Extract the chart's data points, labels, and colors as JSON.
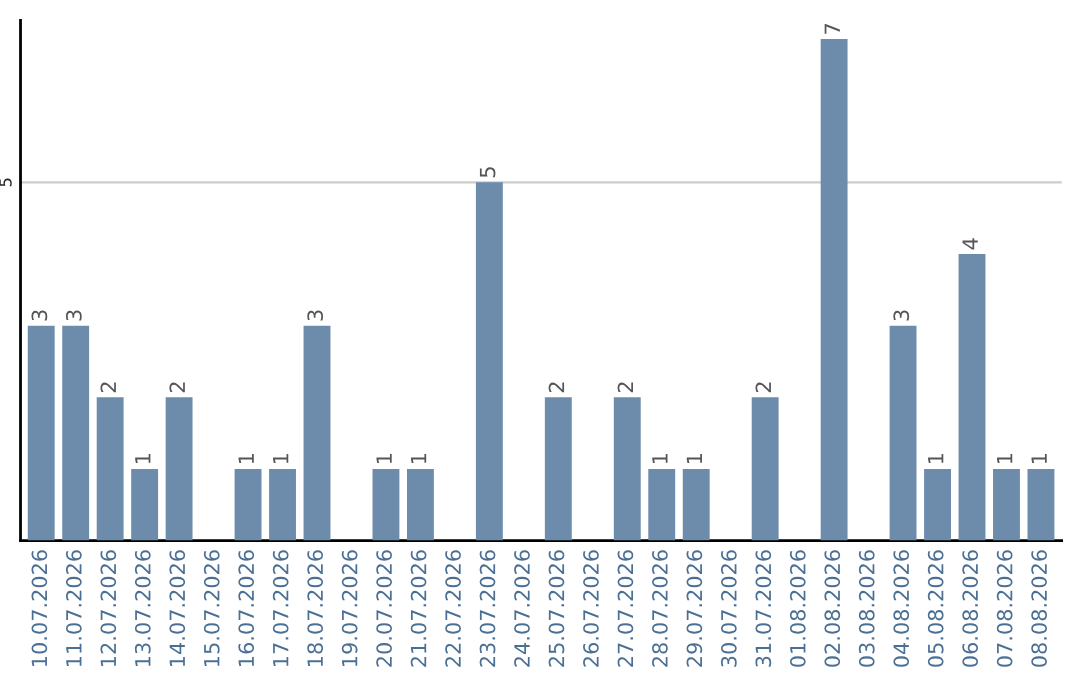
{
  "chart_data": {
    "type": "bar",
    "categories": [
      "10.07.2026",
      "11.07.2026",
      "12.07.2026",
      "13.07.2026",
      "14.07.2026",
      "15.07.2026",
      "16.07.2026",
      "17.07.2026",
      "18.07.2026",
      "19.07.2026",
      "20.07.2026",
      "21.07.2026",
      "22.07.2026",
      "23.07.2026",
      "24.07.2026",
      "25.07.2026",
      "26.07.2026",
      "27.07.2026",
      "28.07.2026",
      "29.07.2026",
      "30.07.2026",
      "31.07.2026",
      "01.08.2026",
      "02.08.2026",
      "03.08.2026",
      "04.08.2026",
      "05.08.2026",
      "06.08.2026",
      "07.08.2026",
      "08.08.2026"
    ],
    "values": [
      3,
      3,
      2,
      1,
      2,
      null,
      1,
      1,
      3,
      null,
      1,
      1,
      null,
      5,
      null,
      2,
      null,
      2,
      1,
      1,
      null,
      2,
      null,
      7,
      null,
      3,
      1,
      4,
      1,
      1
    ],
    "value_labels": [
      "3",
      "3",
      "2",
      "1",
      "2",
      null,
      "1",
      "1",
      "3",
      null,
      "1",
      "1",
      null,
      "5",
      null,
      "2",
      null,
      "2",
      "1",
      "1",
      null,
      "2",
      null,
      "7",
      null,
      "3",
      "1",
      "4",
      "1",
      "1"
    ],
    "color": "#6d8cab",
    "ylim": [
      0,
      7.26
    ],
    "yticks": [
      5
    ],
    "grid": "y"
  }
}
